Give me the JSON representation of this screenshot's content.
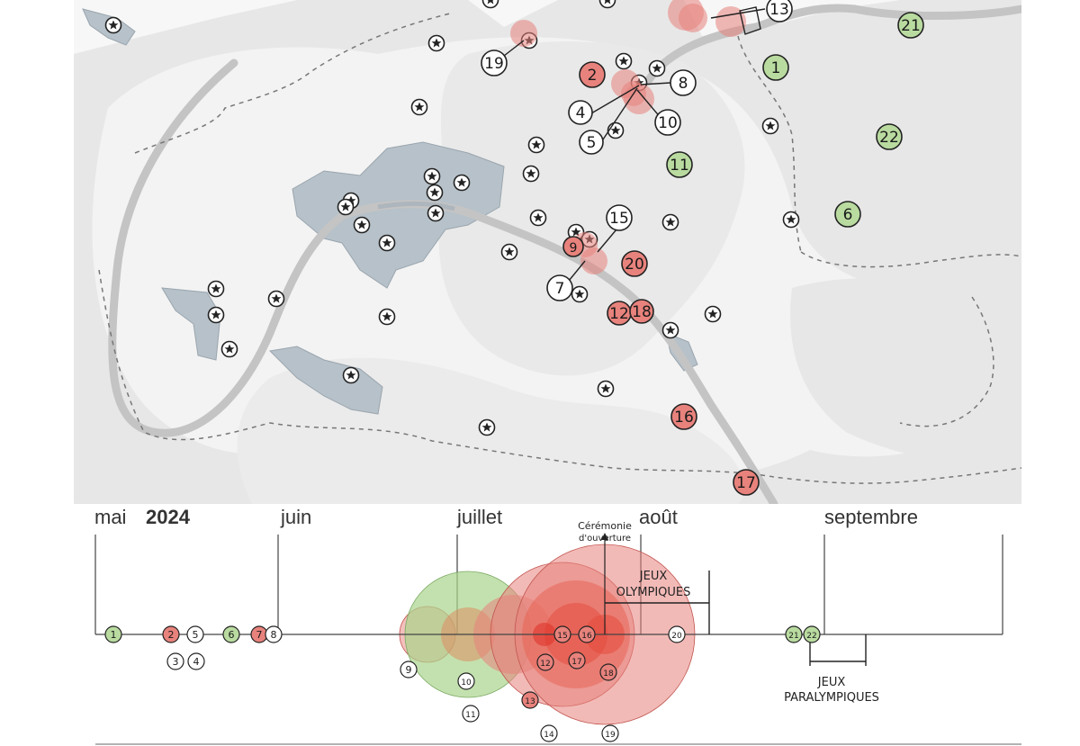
{
  "map": {
    "markers": [
      {
        "n": "1",
        "status": "green"
      },
      {
        "n": "2",
        "status": "red"
      },
      {
        "n": "4",
        "status": "white"
      },
      {
        "n": "5",
        "status": "white"
      },
      {
        "n": "6",
        "status": "green"
      },
      {
        "n": "7",
        "status": "white"
      },
      {
        "n": "8",
        "status": "white"
      },
      {
        "n": "9",
        "status": "red"
      },
      {
        "n": "10",
        "status": "white"
      },
      {
        "n": "11",
        "status": "green"
      },
      {
        "n": "12",
        "status": "red"
      },
      {
        "n": "13",
        "status": "white"
      },
      {
        "n": "15",
        "status": "white"
      },
      {
        "n": "16",
        "status": "red"
      },
      {
        "n": "17",
        "status": "red"
      },
      {
        "n": "18",
        "status": "red"
      },
      {
        "n": "19",
        "status": "white"
      },
      {
        "n": "20",
        "status": "red"
      },
      {
        "n": "21",
        "status": "green"
      },
      {
        "n": "22",
        "status": "green"
      }
    ],
    "colors": {
      "red": "#e8827c",
      "green": "#b9dba0",
      "white": "#ffffff",
      "water": "#b4bec6",
      "land": "#e6e6e6",
      "river": "#c3c3c3"
    }
  },
  "timeline": {
    "months": [
      "mai",
      "juin",
      "juillet",
      "août",
      "septembre"
    ],
    "year": "2024",
    "ceremony_line1": "Cérémonie",
    "ceremony_line2": "d'ouverture",
    "olympics_line1": "JEUX",
    "olympics_line2": "OLYMPIQUES",
    "paralympics_line1": "JEUX",
    "paralympics_line2": "PARALYMPIQUES",
    "points": [
      "1",
      "2",
      "3",
      "4",
      "5",
      "6",
      "7",
      "8",
      "9",
      "10",
      "11",
      "12",
      "13",
      "14",
      "15",
      "16",
      "17",
      "18",
      "19",
      "20",
      "21",
      "22"
    ]
  }
}
